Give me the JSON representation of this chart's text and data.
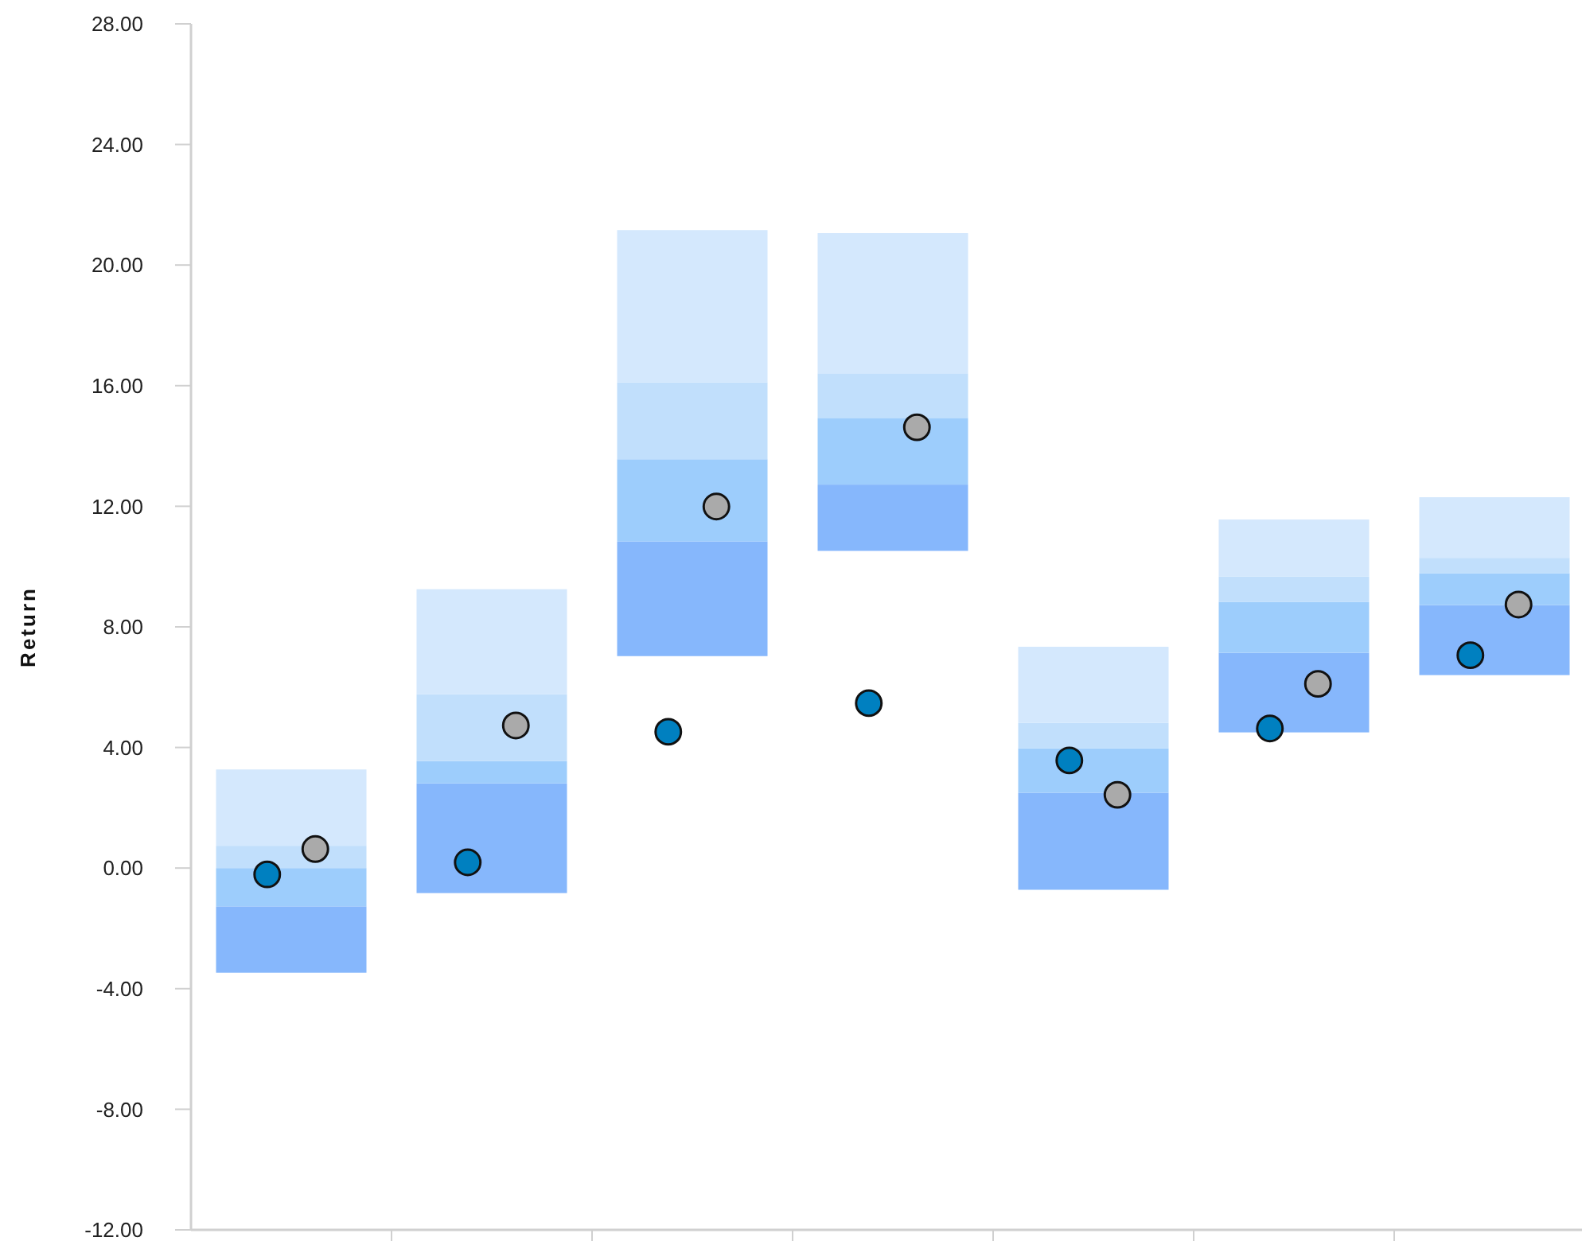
{
  "chart_data": {
    "type": "bar",
    "ylabel": "Return",
    "categories": [
      null,
      null,
      null,
      null,
      null,
      null,
      null
    ],
    "series": [
      {
        "color": "#86b7fc",
        "base": [
          -3.47,
          -0.83,
          7.03,
          10.52,
          -0.72,
          4.5,
          6.4
        ],
        "values": [
          2.2,
          3.64,
          3.8,
          2.2,
          3.22,
          2.64,
          2.32
        ]
      },
      {
        "color": "#9dcdfc",
        "base": [
          -1.27,
          2.81,
          10.83,
          12.72,
          2.5,
          7.14,
          8.72
        ],
        "values": [
          1.27,
          0.74,
          2.73,
          2.21,
          1.47,
          1.69,
          1.06
        ]
      },
      {
        "color": "#c1dffc",
        "base": [
          0.0,
          3.55,
          13.56,
          14.93,
          3.97,
          8.83,
          9.78
        ],
        "values": [
          0.74,
          2.22,
          2.55,
          1.48,
          0.85,
          0.84,
          0.51
        ]
      },
      {
        "color": "#d4e8fd",
        "base": [
          0.74,
          5.77,
          16.11,
          16.41,
          4.82,
          9.67,
          10.29
        ],
        "values": [
          2.53,
          3.48,
          5.05,
          4.65,
          2.52,
          1.89,
          2.01
        ]
      },
      {
        "type": "scatter",
        "color": "#0080c0",
        "values": [
          -0.21,
          0.19,
          4.52,
          5.47,
          3.57,
          4.63,
          7.06
        ]
      },
      {
        "type": "scatter",
        "color": "#aaaaaa",
        "values": [
          0.63,
          4.73,
          11.99,
          14.62,
          2.43,
          6.11,
          8.74
        ]
      }
    ],
    "marker": "circle",
    "ylim": [
      -12,
      28
    ],
    "yticks": [
      {
        "value": -12,
        "label": "-12.00"
      },
      {
        "value": -8,
        "label": "-8.00"
      },
      {
        "value": -4,
        "label": "-4.00"
      },
      {
        "value": 0,
        "label": "0.00"
      },
      {
        "value": 4,
        "label": "4.00"
      },
      {
        "value": 8,
        "label": "8.00"
      },
      {
        "value": 12,
        "label": "12.00"
      },
      {
        "value": 16,
        "label": "16.00"
      },
      {
        "value": 20,
        "label": "20.00"
      },
      {
        "value": 24,
        "label": "24.00"
      },
      {
        "value": 28,
        "label": "28.00"
      }
    ],
    "tick_labels": "y",
    "grid": false
  }
}
